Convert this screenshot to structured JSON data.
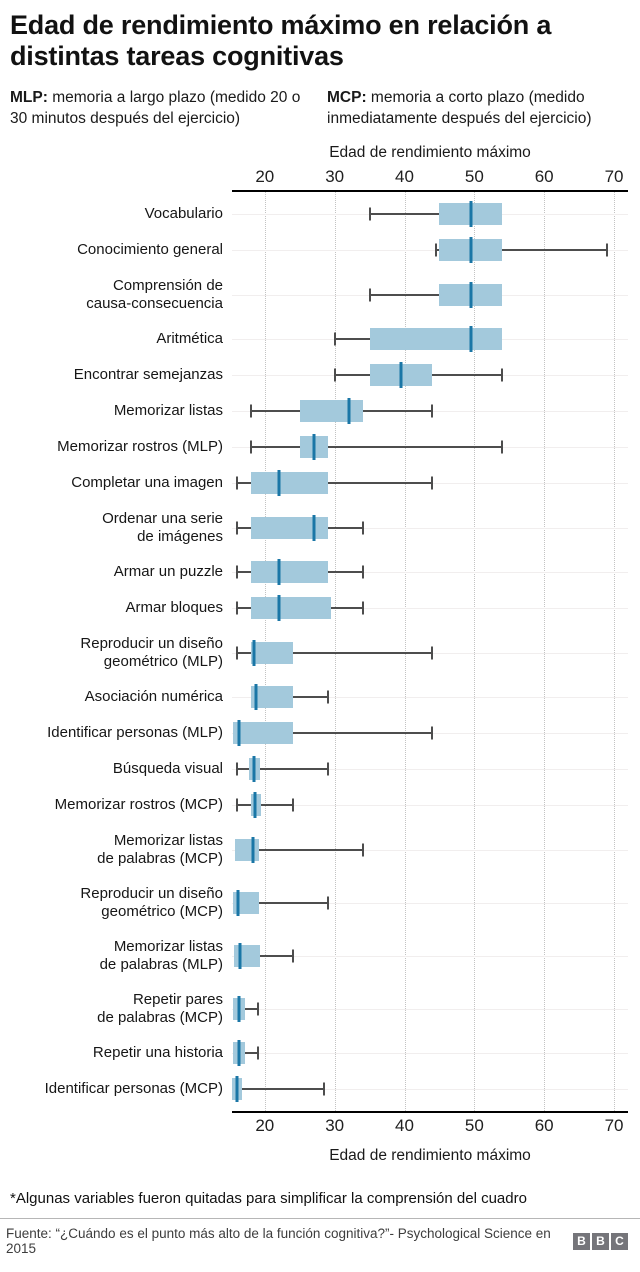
{
  "title": "Edad de rendimiento máximo en relación a distintas tareas cognitivas",
  "legend": {
    "mlp_term": "MLP:",
    "mlp_desc": "memoria a largo plazo (medido 20 o 30 minutos después del ejercicio)",
    "mcp_term": "MCP:",
    "mcp_desc": "memoria a corto plazo (medido inmediatamente después del ejercicio)"
  },
  "chart_data": {
    "type": "boxplot",
    "orientation": "horizontal",
    "axis_label_top": "Edad de rendimiento máximo",
    "axis_label_bottom": "Edad de rendimiento máximo",
    "ticks": [
      20,
      30,
      40,
      50,
      60,
      70
    ],
    "domain": [
      15.3,
      72
    ],
    "grid": "dotted-vertical",
    "colors": {
      "box_fill": "#a3c9dc",
      "median": "#1a76a6",
      "whisker": "#4d4d4d",
      "axis": "#000000",
      "grid": "#c3c3c3",
      "row_line": "#f1eeee"
    },
    "rows": [
      {
        "label": "Vocabulario",
        "low": 35,
        "q1": 45,
        "med": 49.5,
        "q3": 54,
        "high": 54
      },
      {
        "label": "Conocimiento general",
        "low": 44.5,
        "q1": 45,
        "med": 49.5,
        "q3": 54,
        "high": 69
      },
      {
        "label": "Comprensión de\ncausa-consecuencia",
        "low": 35,
        "q1": 45,
        "med": 49.5,
        "q3": 54,
        "high": 54
      },
      {
        "label": "Aritmética",
        "low": 30,
        "q1": 35,
        "med": 49.5,
        "q3": 54,
        "high": 54
      },
      {
        "label": "Encontrar semejanzas",
        "low": 30,
        "q1": 35,
        "med": 39.5,
        "q3": 44,
        "high": 54
      },
      {
        "label": "Memorizar listas",
        "low": 18,
        "q1": 25,
        "med": 32,
        "q3": 34,
        "high": 44
      },
      {
        "label": "Memorizar rostros (MLP)",
        "low": 18,
        "q1": 25,
        "med": 27,
        "q3": 29,
        "high": 54
      },
      {
        "label": "Completar una imagen",
        "low": 16,
        "q1": 18,
        "med": 22,
        "q3": 29,
        "high": 44
      },
      {
        "label": "Ordenar una serie\nde imágenes",
        "low": 16,
        "q1": 18,
        "med": 27,
        "q3": 29,
        "high": 34
      },
      {
        "label": "Armar un puzzle",
        "low": 16,
        "q1": 18,
        "med": 22,
        "q3": 29,
        "high": 34
      },
      {
        "label": "Armar bloques",
        "low": 16,
        "q1": 18,
        "med": 22,
        "q3": 29.5,
        "high": 34
      },
      {
        "label": "Reproducir un diseño\ngeométrico (MLP)",
        "low": 16,
        "q1": 18,
        "med": 18.5,
        "q3": 24,
        "high": 44
      },
      {
        "label": "Asociación numérica",
        "low": 18,
        "q1": 18,
        "med": 18.7,
        "q3": 24,
        "high": 29
      },
      {
        "label": "Identificar personas (MLP)",
        "low": 15.4,
        "q1": 15.4,
        "med": 16.3,
        "q3": 24,
        "high": 44
      },
      {
        "label": "Búsqueda visual",
        "low": 16,
        "q1": 17.8,
        "med": 18.5,
        "q3": 19.3,
        "high": 29
      },
      {
        "label": "Memorizar rostros (MCP)",
        "low": 16,
        "q1": 18,
        "med": 18.6,
        "q3": 19.4,
        "high": 24
      },
      {
        "label": "Memorizar listas\nde palabras (MCP)",
        "low": 15.7,
        "q1": 15.7,
        "med": 18.3,
        "q3": 19.2,
        "high": 34
      },
      {
        "label": "Reproducir un diseño\ngeométrico (MCP)",
        "low": 15.4,
        "q1": 15.4,
        "med": 16.2,
        "q3": 19.2,
        "high": 29
      },
      {
        "label": "Memorizar listas\nde palabras (MLP)",
        "low": 15.6,
        "q1": 15.6,
        "med": 16.5,
        "q3": 19.3,
        "high": 24
      },
      {
        "label": "Repetir pares\nde palabras (MCP)",
        "low": 15.4,
        "q1": 15.4,
        "med": 16.3,
        "q3": 17.1,
        "high": 19
      },
      {
        "label": "Repetir una historia",
        "low": 15.4,
        "q1": 15.4,
        "med": 16.3,
        "q3": 17.1,
        "high": 19
      },
      {
        "label": "Identificar personas (MCP)",
        "low": 15.3,
        "q1": 15.3,
        "med": 16,
        "q3": 16.7,
        "high": 28.5
      }
    ]
  },
  "footnote": "*Algunas variables fueron quitadas para simplificar la comprensión del cuadro",
  "footer": {
    "source": "Fuente: “¿Cuándo es el punto más alto de la función cognitiva?”- Psychological Science en 2015",
    "logo_letters": [
      "B",
      "B",
      "C"
    ]
  }
}
